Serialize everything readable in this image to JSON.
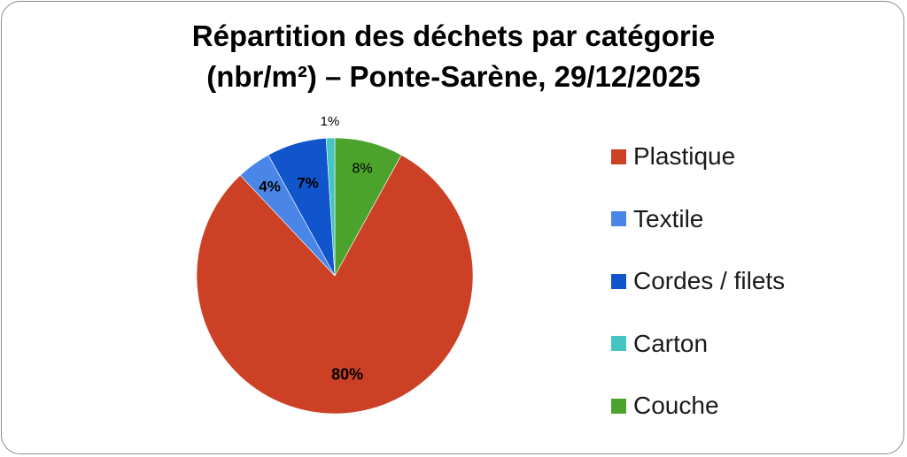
{
  "chart_data": {
    "type": "pie",
    "title_lines": [
      "Répartition des déchets par catégorie",
      "(nbr/m²) – Ponte-Sarène, 29/12/2025"
    ],
    "categories": [
      "Plastique",
      "Textile",
      "Cordes / filets",
      "Carton",
      "Couche"
    ],
    "values": [
      80,
      4,
      7,
      1,
      8
    ],
    "data_labels": [
      "80%",
      "4%",
      "7%",
      "1%",
      "8%"
    ],
    "colors": [
      "#cc4125",
      "#4a86e8",
      "#1155cc",
      "#45c4c4",
      "#4ba32c"
    ],
    "start_angle": "12 o'clock",
    "direction": "clockwise",
    "legend_position": "right"
  }
}
